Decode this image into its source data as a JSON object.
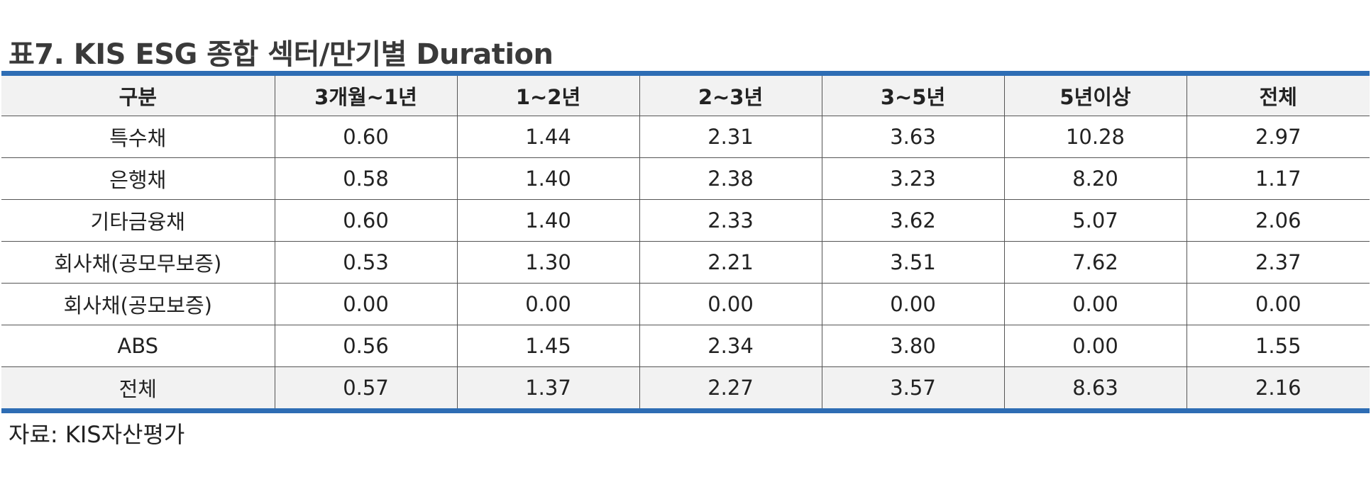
{
  "title": "표7. KIS ESG 종합 섹터/만기별 Duration",
  "table": {
    "headers": [
      "구분",
      "3개월~1년",
      "1~2년",
      "2~3년",
      "3~5년",
      "5년이상",
      "전체"
    ],
    "rows": [
      [
        "특수채",
        "0.60",
        "1.44",
        "2.31",
        "3.63",
        "10.28",
        "2.97"
      ],
      [
        "은행채",
        "0.58",
        "1.40",
        "2.38",
        "3.23",
        "8.20",
        "1.17"
      ],
      [
        "기타금융채",
        "0.60",
        "1.40",
        "2.33",
        "3.62",
        "5.07",
        "2.06"
      ],
      [
        "회사채(공모무보증)",
        "0.53",
        "1.30",
        "2.21",
        "3.51",
        "7.62",
        "2.37"
      ],
      [
        "회사채(공모보증)",
        "0.00",
        "0.00",
        "0.00",
        "0.00",
        "0.00",
        "0.00"
      ],
      [
        "ABS",
        "0.56",
        "1.45",
        "2.34",
        "3.80",
        "0.00",
        "1.55"
      ],
      [
        "전체",
        "0.57",
        "1.37",
        "2.27",
        "3.57",
        "8.63",
        "2.16"
      ]
    ]
  },
  "source": "자료: KIS자산평가",
  "colors": {
    "rule": "#2e6db4",
    "header_bg": "#f2f2f2",
    "total_bg": "#f2f2f2"
  }
}
